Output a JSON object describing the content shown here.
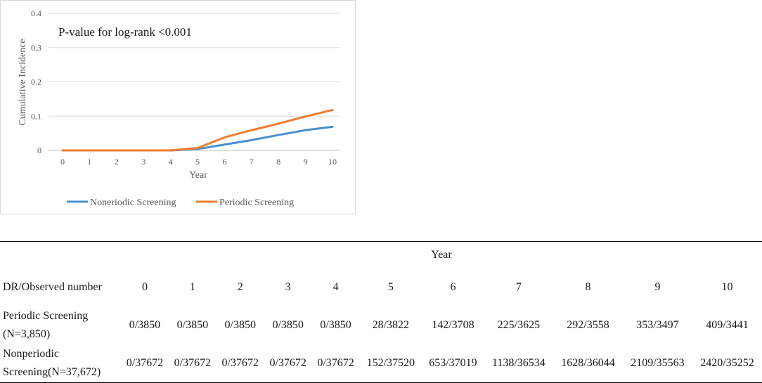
{
  "chart_data": {
    "type": "line",
    "annotation": "P-value for log-rank <0.001",
    "xlabel": "Year",
    "ylabel": "Cumulative Incidence",
    "x": [
      0,
      1,
      2,
      3,
      4,
      5,
      6,
      7,
      8,
      9,
      10
    ],
    "xlim": [
      0,
      10
    ],
    "ylim": [
      0,
      0.4
    ],
    "yticks": [
      0,
      0.1,
      0.2,
      0.3,
      0.4
    ],
    "ytick_labels": [
      "0",
      "0.1",
      "0.2",
      "0.3",
      "0.4"
    ],
    "grid": true,
    "legend_position": "bottom",
    "series": [
      {
        "name": "Noneriodic Screening",
        "color": "#4a90d0",
        "values": [
          0,
          0,
          0,
          0,
          0,
          0.004,
          0.017,
          0.03,
          0.045,
          0.059,
          0.069
        ]
      },
      {
        "name": "Periodic Screening",
        "color": "#ed7d31",
        "values": [
          0,
          0,
          0,
          0,
          0,
          0.007,
          0.038,
          0.059,
          0.078,
          0.099,
          0.118
        ]
      }
    ]
  },
  "table": {
    "year_header": "Year",
    "corner_label": "DR/Observed number",
    "years": [
      "0",
      "1",
      "2",
      "3",
      "4",
      "5",
      "6",
      "7",
      "8",
      "9",
      "10"
    ],
    "rows": [
      {
        "label": "Periodic Screening (N=3,850)",
        "values": [
          "0/3850",
          "0/3850",
          "0/3850",
          "0/3850",
          "0/3850",
          "28/3822",
          "142/3708",
          "225/3625",
          "292/3558",
          "353/3497",
          "409/3441"
        ]
      },
      {
        "label": "Nonperiodic Screening(N=37,672)",
        "values": [
          "0/37672",
          "0/37672",
          "0/37672",
          "0/37672",
          "0/37672",
          "152/37520",
          "653/37019",
          "1138/36534",
          "1628/36044",
          "2109/35563",
          "2420/35252"
        ]
      }
    ]
  }
}
